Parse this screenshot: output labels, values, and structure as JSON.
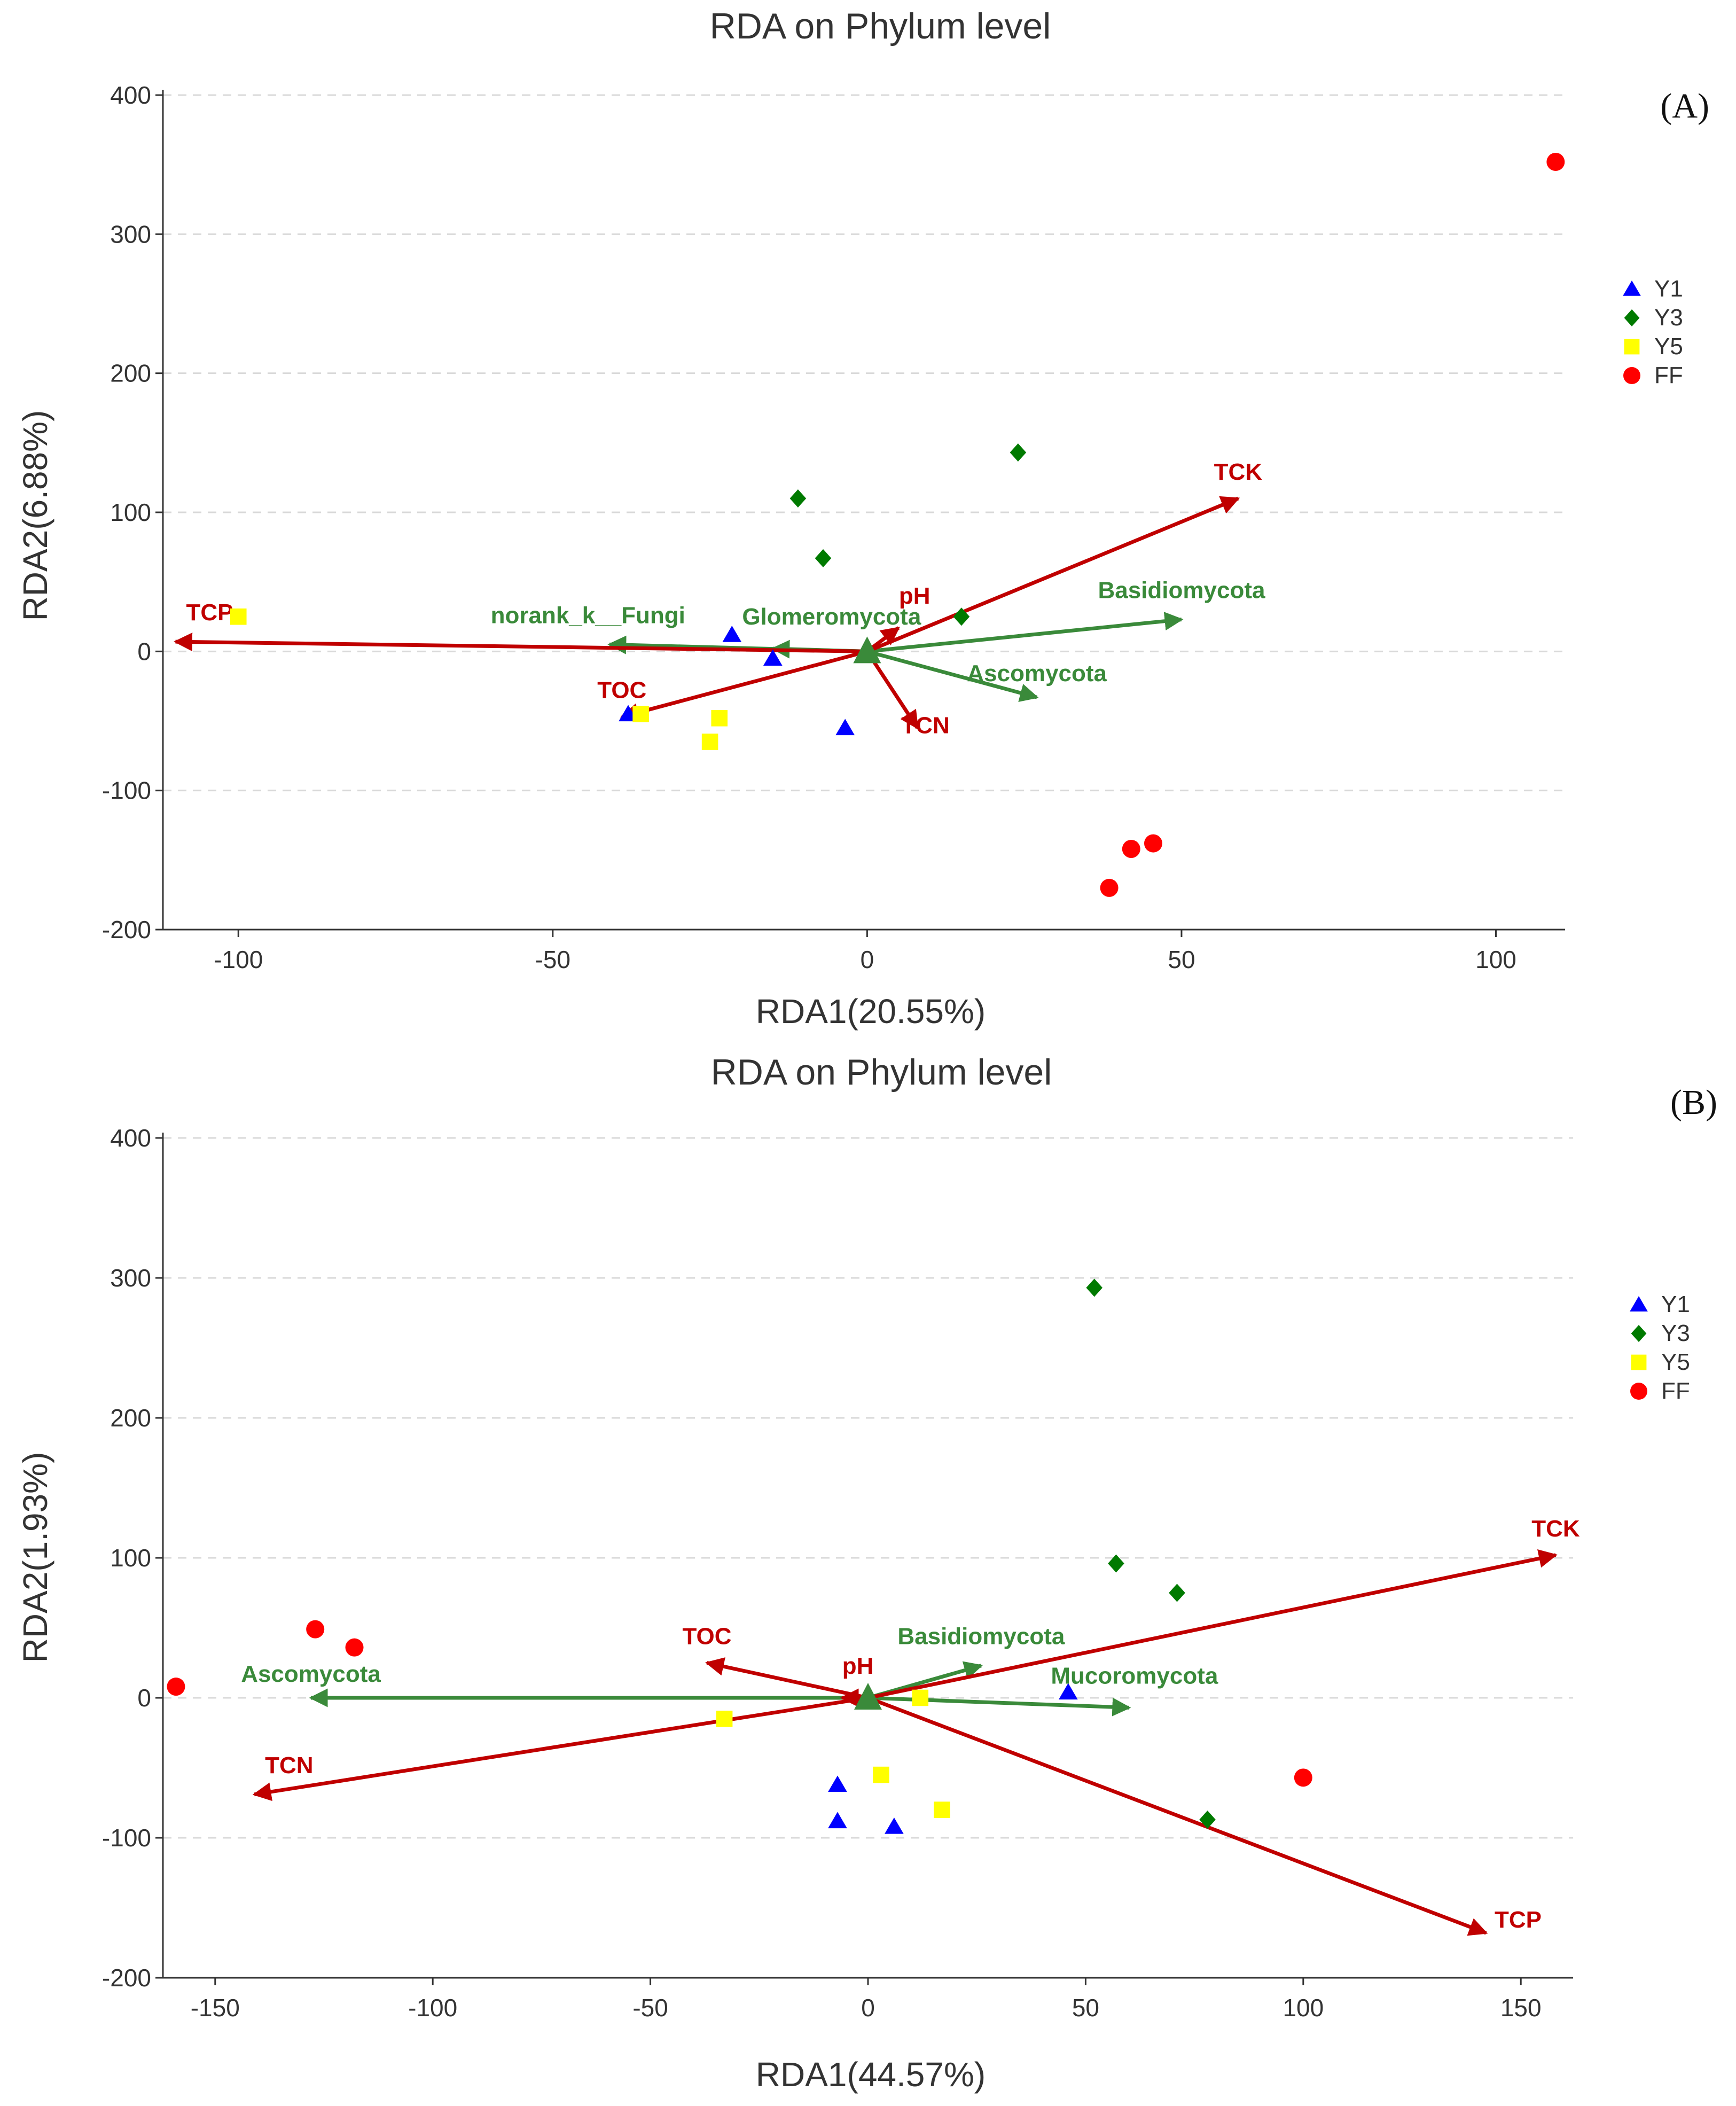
{
  "chart_data": [
    {
      "type": "scatter",
      "panel": "(A)",
      "title": "RDA on Phylum level",
      "xlabel": "RDA1(20.55%)",
      "ylabel": "RDA2(6.88%)",
      "xlim": [
        -112,
        111
      ],
      "ylim": [
        -200,
        400
      ],
      "xticks": [
        "-100",
        "-50",
        "0",
        "50",
        "100"
      ],
      "xtick_values": [
        -100,
        -50,
        0,
        50,
        100
      ],
      "yticks": [
        "400",
        "300",
        "200",
        "100",
        "0",
        "-100",
        "-200"
      ],
      "ytick_values": [
        400,
        300,
        200,
        100,
        0,
        -100,
        -200
      ],
      "grid": "horizontal dashed",
      "legend": [
        {
          "label": "Y1",
          "shape": "triangle",
          "color": "#0000ff"
        },
        {
          "label": "Y3",
          "shape": "diamond",
          "color": "#007a00"
        },
        {
          "label": "Y5",
          "shape": "square",
          "color": "#ffff00"
        },
        {
          "label": "FF",
          "shape": "circle",
          "color": "#ff0000"
        }
      ],
      "groups": [
        {
          "name": "Y1",
          "points": [
            [
              -21.5,
              12
            ],
            [
              -15,
              -5
            ],
            [
              -38,
              -45
            ],
            [
              -3.5,
              -55
            ]
          ]
        },
        {
          "name": "Y3",
          "points": [
            [
              24,
              143
            ],
            [
              -11,
              110
            ],
            [
              -7,
              67
            ],
            [
              15,
              25
            ]
          ]
        },
        {
          "name": "Y5",
          "points": [
            [
              -100,
              25
            ],
            [
              -36,
              -45
            ],
            [
              -23.5,
              -48
            ],
            [
              -25,
              -65
            ]
          ]
        },
        {
          "name": "FF",
          "points": [
            [
              109.5,
              352
            ],
            [
              45.5,
              -138
            ],
            [
              42,
              -142
            ],
            [
              38.5,
              -170
            ]
          ]
        }
      ],
      "env_arrows": [
        {
          "label": "TCK",
          "x": 59,
          "y": 110
        },
        {
          "label": "TCP",
          "x": -110,
          "y": 7
        },
        {
          "label": "TOC",
          "x": -39,
          "y": -47
        },
        {
          "label": "pH",
          "x": 5,
          "y": 17
        },
        {
          "label": "TCN",
          "x": 8,
          "y": -55
        }
      ],
      "species_arrows": [
        {
          "label": "Basidiomycota",
          "x": 50,
          "y": 23
        },
        {
          "label": "Ascomycota",
          "x": 27,
          "y": -33
        },
        {
          "label": "norank_k__Fungi",
          "x": -41,
          "y": 5
        },
        {
          "label": "Glomeromycota",
          "x": -15,
          "y": 2
        }
      ]
    },
    {
      "type": "scatter",
      "panel": "(B)",
      "title": "RDA on Phylum level",
      "xlabel": "RDA1(44.57%)",
      "ylabel": "RDA2(1.93%)",
      "xlim": [
        -162,
        162
      ],
      "ylim": [
        -200,
        400
      ],
      "xticks": [
        "-150",
        "-100",
        "-50",
        "0",
        "50",
        "100",
        "150"
      ],
      "xtick_values": [
        -150,
        -100,
        -50,
        0,
        50,
        100,
        150
      ],
      "yticks": [
        "400",
        "300",
        "200",
        "100",
        "0",
        "-100",
        "-200"
      ],
      "ytick_values": [
        400,
        300,
        200,
        100,
        0,
        -100,
        -200
      ],
      "grid": "horizontal dashed",
      "legend": [
        {
          "label": "Y1",
          "shape": "triangle",
          "color": "#0000ff"
        },
        {
          "label": "Y3",
          "shape": "diamond",
          "color": "#007a00"
        },
        {
          "label": "Y5",
          "shape": "square",
          "color": "#ffff00"
        },
        {
          "label": "FF",
          "shape": "circle",
          "color": "#ff0000"
        }
      ],
      "groups": [
        {
          "name": "Y1",
          "points": [
            [
              -7,
              -62
            ],
            [
              -7,
              -88
            ],
            [
              6,
              -92
            ],
            [
              46,
              4
            ]
          ]
        },
        {
          "name": "Y3",
          "points": [
            [
              52,
              293
            ],
            [
              57,
              96
            ],
            [
              71,
              75
            ],
            [
              78,
              -87
            ]
          ]
        },
        {
          "name": "Y5",
          "points": [
            [
              -33,
              -15
            ],
            [
              3,
              -55
            ],
            [
              17,
              -80
            ],
            [
              12,
              0
            ]
          ]
        },
        {
          "name": "FF",
          "points": [
            [
              -127,
              49
            ],
            [
              -118,
              36
            ],
            [
              -159,
              8
            ],
            [
              100,
              -57
            ]
          ]
        }
      ],
      "env_arrows": [
        {
          "label": "TCK",
          "x": 158,
          "y": 102
        },
        {
          "label": "TCP",
          "x": 142,
          "y": -168
        },
        {
          "label": "TOC",
          "x": -37,
          "y": 25
        },
        {
          "label": "pH",
          "x": -6,
          "y": 0
        },
        {
          "label": "TCN",
          "x": -141,
          "y": -69
        }
      ],
      "species_arrows": [
        {
          "label": "Ascomycota",
          "x": -128,
          "y": 0
        },
        {
          "label": "Basidiomycota",
          "x": 26,
          "y": 23
        },
        {
          "label": "Mucoromycota",
          "x": 60,
          "y": -7
        }
      ]
    }
  ]
}
